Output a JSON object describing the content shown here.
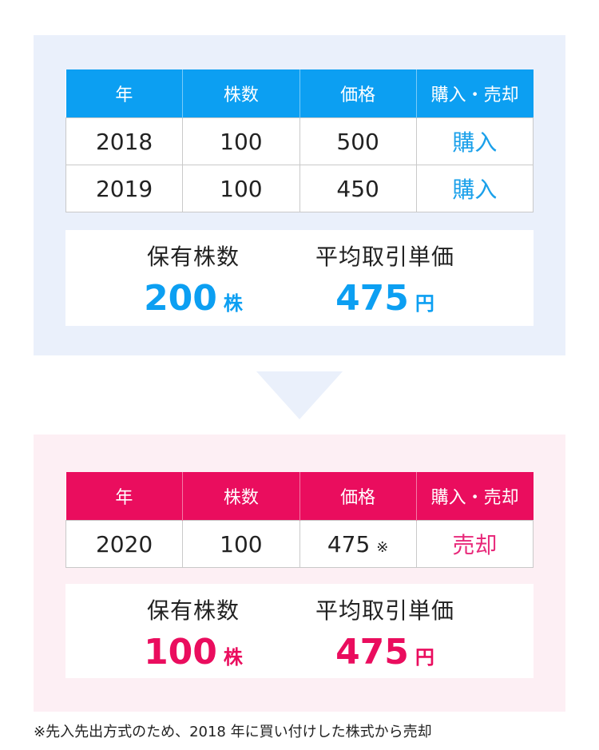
{
  "headers": [
    "年",
    "株数",
    "価格",
    "購入・売却"
  ],
  "before": {
    "rows": [
      {
        "year": "2018",
        "shares": "100",
        "price": "500",
        "action": "購入"
      },
      {
        "year": "2019",
        "shares": "100",
        "price": "450",
        "action": "購入"
      }
    ],
    "summary": {
      "holdings_label": "保有株数",
      "holdings_value": "200",
      "holdings_unit": "株",
      "avg_price_label": "平均取引単価",
      "avg_price_value": "475",
      "avg_price_unit": "円"
    }
  },
  "after": {
    "rows": [
      {
        "year": "2020",
        "shares": "100",
        "price": "475",
        "price_note": "※",
        "action": "売却"
      }
    ],
    "summary": {
      "holdings_label": "保有株数",
      "holdings_value": "100",
      "holdings_unit": "株",
      "avg_price_label": "平均取引単価",
      "avg_price_value": "475",
      "avg_price_unit": "円"
    }
  },
  "footnote": "※先入先出方式のため、2018 年に買い付けした株式から売却",
  "colors": {
    "blue": "#0c9ff2",
    "pink": "#ea0d5e",
    "blue_panel": "#eaf0fb",
    "pink_panel": "#fdeff4"
  }
}
